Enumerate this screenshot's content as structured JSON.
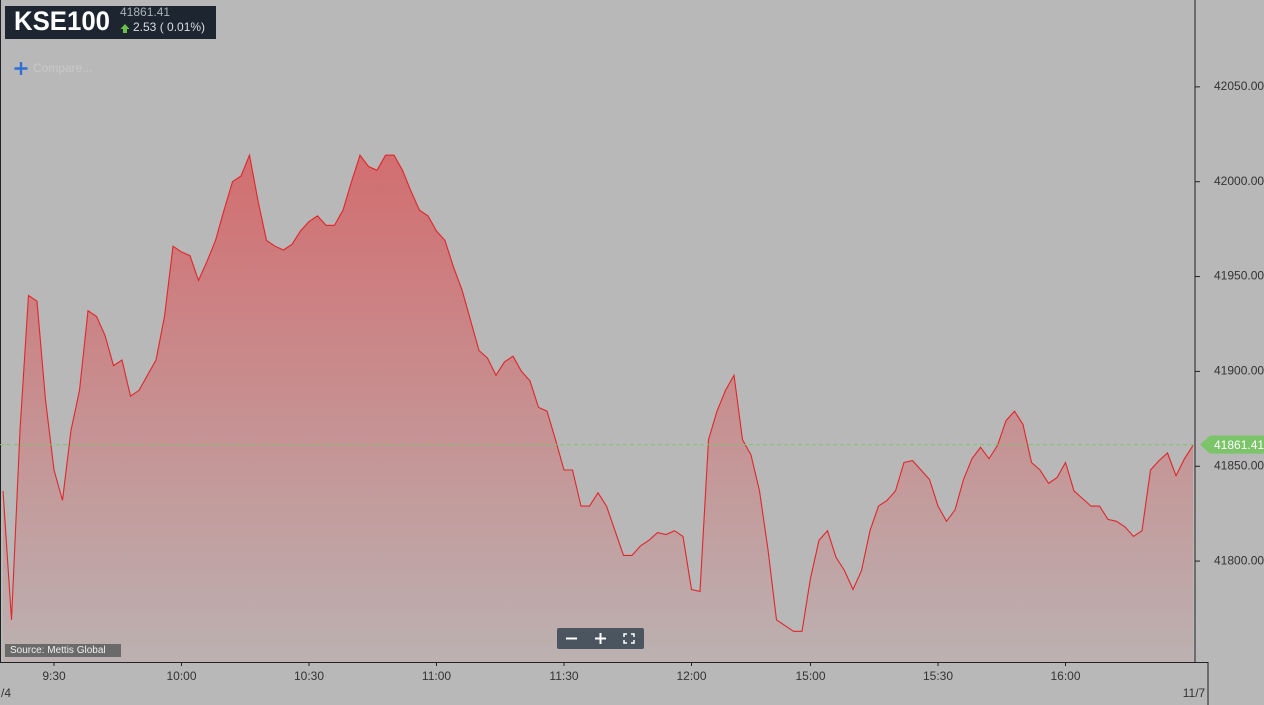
{
  "chart_data": {
    "type": "area",
    "title": "KSE100",
    "last_price": 41861.41,
    "change_label": "2.53 ( 0.01%)",
    "compare_label": "Compare...",
    "source": "Source: Mettis Global",
    "x_edge_labels": [
      "/4",
      "11/7"
    ],
    "line_color": "#e0262a",
    "fill_top": "#d26e70",
    "fill_bottom": "#bcb1b1",
    "last_price_color": "#7cc46a",
    "categories": [
      null,
      null,
      null,
      null,
      null,
      null,
      "9:30",
      null,
      null,
      null,
      null,
      null,
      null,
      null,
      null,
      null,
      null,
      null,
      null,
      null,
      null,
      "10:00",
      null,
      null,
      null,
      null,
      null,
      null,
      null,
      null,
      null,
      null,
      null,
      null,
      null,
      null,
      "10:30",
      null,
      null,
      null,
      null,
      null,
      null,
      null,
      null,
      null,
      null,
      null,
      null,
      null,
      null,
      "11:00",
      null,
      null,
      null,
      null,
      null,
      null,
      null,
      null,
      null,
      null,
      null,
      null,
      null,
      null,
      "11:30",
      null,
      null,
      null,
      null,
      null,
      null,
      null,
      null,
      null,
      null,
      null,
      null,
      null,
      null,
      "12:00",
      null,
      null,
      null,
      null,
      null,
      null,
      null,
      null,
      null,
      null,
      null,
      null,
      null,
      "15:00",
      null,
      null,
      null,
      null,
      null,
      null,
      null,
      null,
      null,
      null,
      null,
      null,
      null,
      null,
      "15:30",
      null,
      null,
      null,
      null,
      null,
      null,
      null,
      null,
      null,
      null,
      null,
      null,
      null,
      null,
      "16:00",
      null,
      null,
      null,
      null,
      null,
      null,
      null,
      null,
      null,
      null,
      null,
      null,
      null,
      null,
      null
    ],
    "values": [
      41837,
      41769,
      41869,
      41940,
      41937,
      41885,
      41848,
      41832,
      41869,
      41890,
      41932,
      41929,
      41919,
      41903,
      41906,
      41887,
      41890,
      41898,
      41906,
      41929,
      41966,
      41963,
      41961,
      41948,
      41958,
      41969,
      41985,
      42000,
      42003,
      42014,
      41990,
      41969,
      41966,
      41964,
      41967,
      41974,
      41979,
      41982,
      41977,
      41977,
      41985,
      42000,
      42014,
      42008,
      42006,
      42014,
      42014,
      42006,
      41995,
      41985,
      41982,
      41974,
      41969,
      41955,
      41943,
      41927,
      41911,
      41907,
      41898,
      41905,
      41908,
      41900,
      41895,
      41881,
      41879,
      41864,
      41848,
      41848,
      41829,
      41829,
      41836,
      41829,
      41816,
      41803,
      41803,
      41808,
      41811,
      41815,
      41814,
      41816,
      41813,
      41785,
      41784,
      41864,
      41879,
      41890,
      41898,
      41864,
      41856,
      41837,
      41806,
      41769,
      41766,
      41763,
      41763,
      41791,
      41811,
      41816,
      41802,
      41795,
      41785,
      41795,
      41816,
      41829,
      41832,
      41837,
      41852,
      41853,
      41848,
      41843,
      41829,
      41821,
      41827,
      41843,
      41854,
      41860,
      41854,
      41861,
      41874,
      41879,
      41872,
      41852,
      41848,
      41841,
      41844,
      41852,
      41837,
      41833,
      41829,
      41829,
      41822,
      41821,
      41818,
      41813,
      41816,
      41848,
      41853,
      41857,
      41845,
      41854,
      41861
    ],
    "ylim": [
      41746.8,
      42095.8
    ],
    "yticks": [
      {
        "value": 41800,
        "label": "41800.00"
      },
      {
        "value": 41850,
        "label": "41850.00"
      },
      {
        "value": 41900,
        "label": "41900.00"
      },
      {
        "value": 41950,
        "label": "41950.00"
      },
      {
        "value": 42000,
        "label": "42000.00"
      },
      {
        "value": 42050,
        "label": "42050.00"
      }
    ]
  }
}
